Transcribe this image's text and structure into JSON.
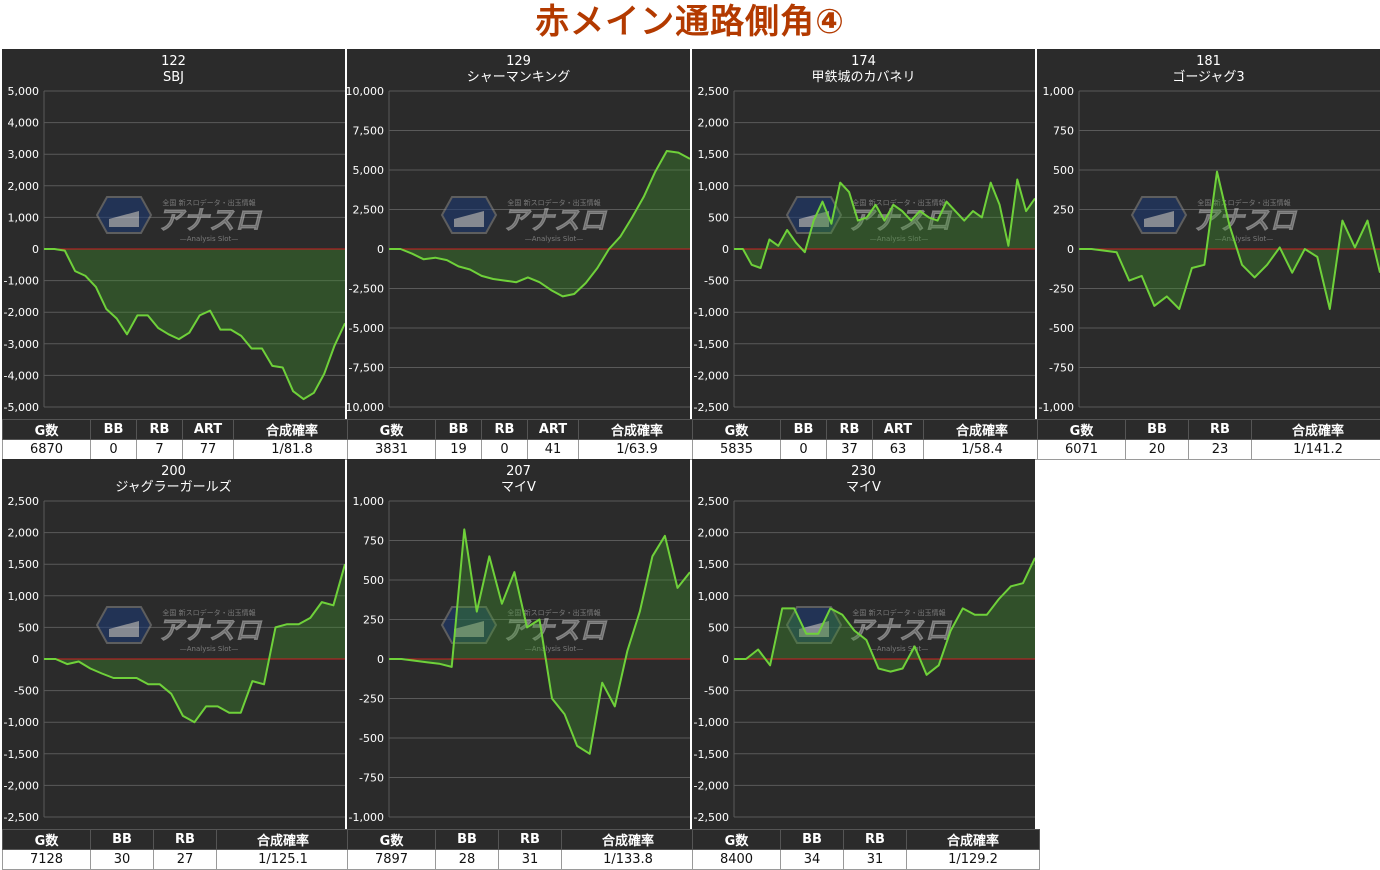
{
  "page": {
    "title": "赤メイン通路側角④"
  },
  "colors": {
    "line": "#6fd13a",
    "area": "rgba(60,150,40,0.35)",
    "zero": "#cc2222",
    "grid": "#5a5a5a",
    "panel": "#2b2b2b"
  },
  "watermark": {
    "small_text": "全国 新スロデータ・出玉情報",
    "big_text": "アナスロ",
    "sub_text": "—Analysis Slot—"
  },
  "chart_data": [
    {
      "type": "line",
      "number": "122",
      "name": "SBJ",
      "yticks": [
        "5,000",
        "4,000",
        "3,000",
        "2,000",
        "1,000",
        "0",
        "-1,000",
        "-2,000",
        "-3,000",
        "-4,000",
        "-5,000"
      ],
      "ylim": [
        -5000,
        5000
      ],
      "values": [
        0,
        0,
        -50,
        -700,
        -850,
        -1200,
        -1900,
        -2200,
        -2700,
        -2100,
        -2100,
        -2500,
        -2700,
        -2850,
        -2650,
        -2100,
        -1950,
        -2550,
        -2550,
        -2750,
        -3150,
        -3150,
        -3700,
        -3750,
        -4500,
        -4750,
        -4550,
        -3950,
        -3050,
        -2350
      ],
      "table": {
        "headers": [
          "G数",
          "BB",
          "RB",
          "ART",
          "合成確率"
        ],
        "values": [
          "6870",
          "0",
          "7",
          "77",
          "1/81.8"
        ]
      }
    },
    {
      "type": "line",
      "number": "129",
      "name": "シャーマンキング",
      "yticks": [
        "10,000",
        "7,500",
        "5,000",
        "2,500",
        "0",
        "-2,500",
        "-5,000",
        "-7,500",
        "-10,000"
      ],
      "ylim": [
        -10000,
        10000
      ],
      "values": [
        0,
        0,
        -300,
        -650,
        -550,
        -700,
        -1100,
        -1300,
        -1700,
        -1900,
        -2000,
        -2100,
        -1800,
        -2100,
        -2600,
        -3000,
        -2850,
        -2150,
        -1200,
        0,
        800,
        2000,
        3300,
        4900,
        6200,
        6100,
        5700
      ],
      "table": {
        "headers": [
          "G数",
          "BB",
          "RB",
          "ART",
          "合成確率"
        ],
        "values": [
          "3831",
          "19",
          "0",
          "41",
          "1/63.9"
        ]
      }
    },
    {
      "type": "line",
      "number": "174",
      "name": "甲鉄城のカバネリ",
      "yticks": [
        "2,500",
        "2,000",
        "1,500",
        "1,000",
        "500",
        "0",
        "-500",
        "-1,000",
        "-1,500",
        "-2,000",
        "-2,500"
      ],
      "ylim": [
        -2500,
        2500
      ],
      "values": [
        0,
        0,
        -250,
        -300,
        150,
        50,
        300,
        100,
        -50,
        450,
        750,
        400,
        1050,
        900,
        450,
        500,
        700,
        450,
        700,
        600,
        450,
        600,
        500,
        450,
        750,
        600,
        450,
        600,
        500,
        1050,
        700,
        50,
        1100,
        600,
        800
      ],
      "table": {
        "headers": [
          "G数",
          "BB",
          "RB",
          "ART",
          "合成確率"
        ],
        "values": [
          "5835",
          "0",
          "37",
          "63",
          "1/58.4"
        ]
      }
    },
    {
      "type": "line",
      "number": "181",
      "name": "ゴージャグ3",
      "yticks": [
        "1,000",
        "750",
        "500",
        "250",
        "0",
        "-250",
        "-500",
        "-750",
        "-1,000"
      ],
      "ylim": [
        -1000,
        1000
      ],
      "values": [
        0,
        0,
        -10,
        -20,
        -200,
        -170,
        -360,
        -300,
        -380,
        -120,
        -100,
        490,
        150,
        -100,
        -180,
        -100,
        10,
        -150,
        0,
        -50,
        -380,
        180,
        10,
        180,
        -150
      ],
      "table": {
        "headers": [
          "G数",
          "BB",
          "RB",
          "合成確率"
        ],
        "values": [
          "6071",
          "20",
          "23",
          "1/141.2"
        ]
      }
    },
    {
      "type": "line",
      "number": "200",
      "name": "ジャグラーガールズ",
      "yticks": [
        "2,500",
        "2,000",
        "1,500",
        "1,000",
        "500",
        "0",
        "-500",
        "-1,000",
        "-1,500",
        "-2,000",
        "-2,500"
      ],
      "ylim": [
        -2500,
        2500
      ],
      "values": [
        0,
        0,
        -80,
        -40,
        -150,
        -230,
        -300,
        -300,
        -300,
        -400,
        -400,
        -550,
        -900,
        -1000,
        -750,
        -750,
        -850,
        -850,
        -350,
        -400,
        500,
        550,
        550,
        650,
        900,
        850,
        1500
      ],
      "table": {
        "headers": [
          "G数",
          "BB",
          "RB",
          "合成確率"
        ],
        "values": [
          "7128",
          "30",
          "27",
          "1/125.1"
        ]
      }
    },
    {
      "type": "line",
      "number": "207",
      "name": "マイV",
      "yticks": [
        "1,000",
        "750",
        "500",
        "250",
        "0",
        "-250",
        "-500",
        "-750",
        "-1,000"
      ],
      "ylim": [
        -1000,
        1000
      ],
      "values": [
        0,
        0,
        -10,
        -20,
        -30,
        -50,
        820,
        300,
        650,
        350,
        550,
        200,
        250,
        -250,
        -350,
        -550,
        -600,
        -150,
        -300,
        50,
        300,
        650,
        780,
        450,
        550
      ],
      "table": {
        "headers": [
          "G数",
          "BB",
          "RB",
          "合成確率"
        ],
        "values": [
          "7897",
          "28",
          "31",
          "1/133.8"
        ]
      }
    },
    {
      "type": "line",
      "number": "230",
      "name": "マイV",
      "yticks": [
        "2,500",
        "2,000",
        "1,500",
        "1,000",
        "500",
        "0",
        "-500",
        "-1,000",
        "-1,500",
        "-2,000",
        "-2,500"
      ],
      "ylim": [
        -2500,
        2500
      ],
      "values": [
        0,
        0,
        150,
        -100,
        800,
        800,
        400,
        400,
        800,
        700,
        450,
        300,
        -150,
        -200,
        -150,
        200,
        -250,
        -100,
        450,
        800,
        700,
        700,
        950,
        1150,
        1200,
        1600
      ],
      "table": {
        "headers": [
          "G数",
          "BB",
          "RB",
          "合成確率"
        ],
        "values": [
          "8400",
          "34",
          "31",
          "1/129.2"
        ]
      }
    }
  ]
}
